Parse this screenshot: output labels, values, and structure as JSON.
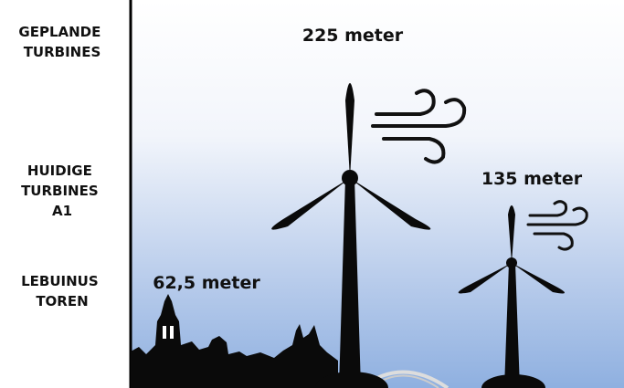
{
  "side_labels": [
    {
      "lines": [
        "GEPLANDE",
        "TURBINES"
      ]
    },
    {
      "lines": [
        "HUIDIGE",
        "TURBINES",
        "A1"
      ]
    },
    {
      "lines": [
        "LEBUINUS",
        "TOREN"
      ]
    }
  ],
  "heights": {
    "planned": "225 meter",
    "current": "135 meter",
    "tower": "62,5 meter"
  }
}
